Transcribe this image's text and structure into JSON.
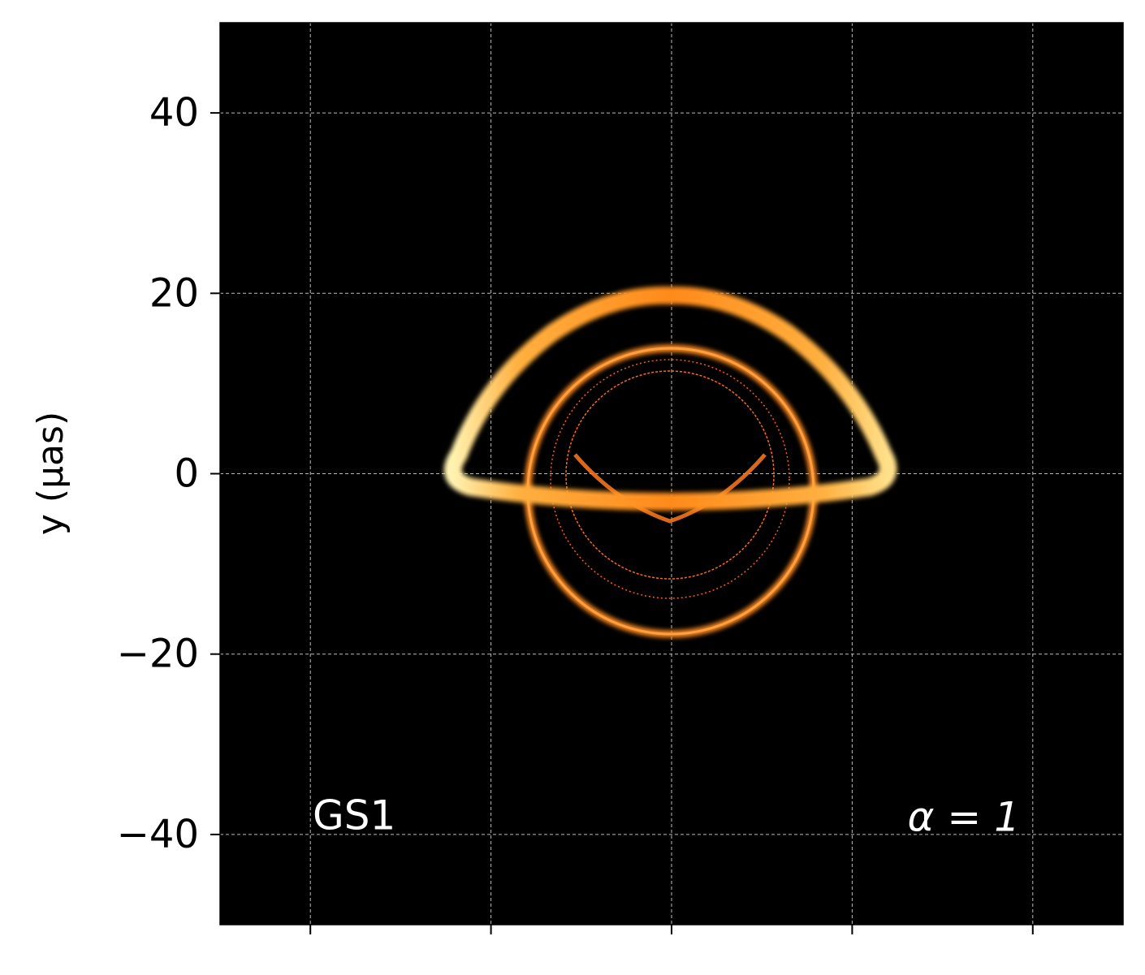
{
  "chart_data": {
    "type": "image",
    "ylabel": "y (μas)",
    "xlim": [
      -50,
      50
    ],
    "ylim": [
      -50,
      50
    ],
    "xticks": [
      -40,
      -20,
      0,
      20,
      40
    ],
    "yticks": [
      {
        "value": -40,
        "label": "−40"
      },
      {
        "value": -20,
        "label": "−20"
      },
      0,
      20,
      40
    ],
    "xtick_labels_visible": false,
    "grid": true,
    "background": "#000000",
    "annotations": [
      "GS1",
      "α = 1"
    ]
  }
}
